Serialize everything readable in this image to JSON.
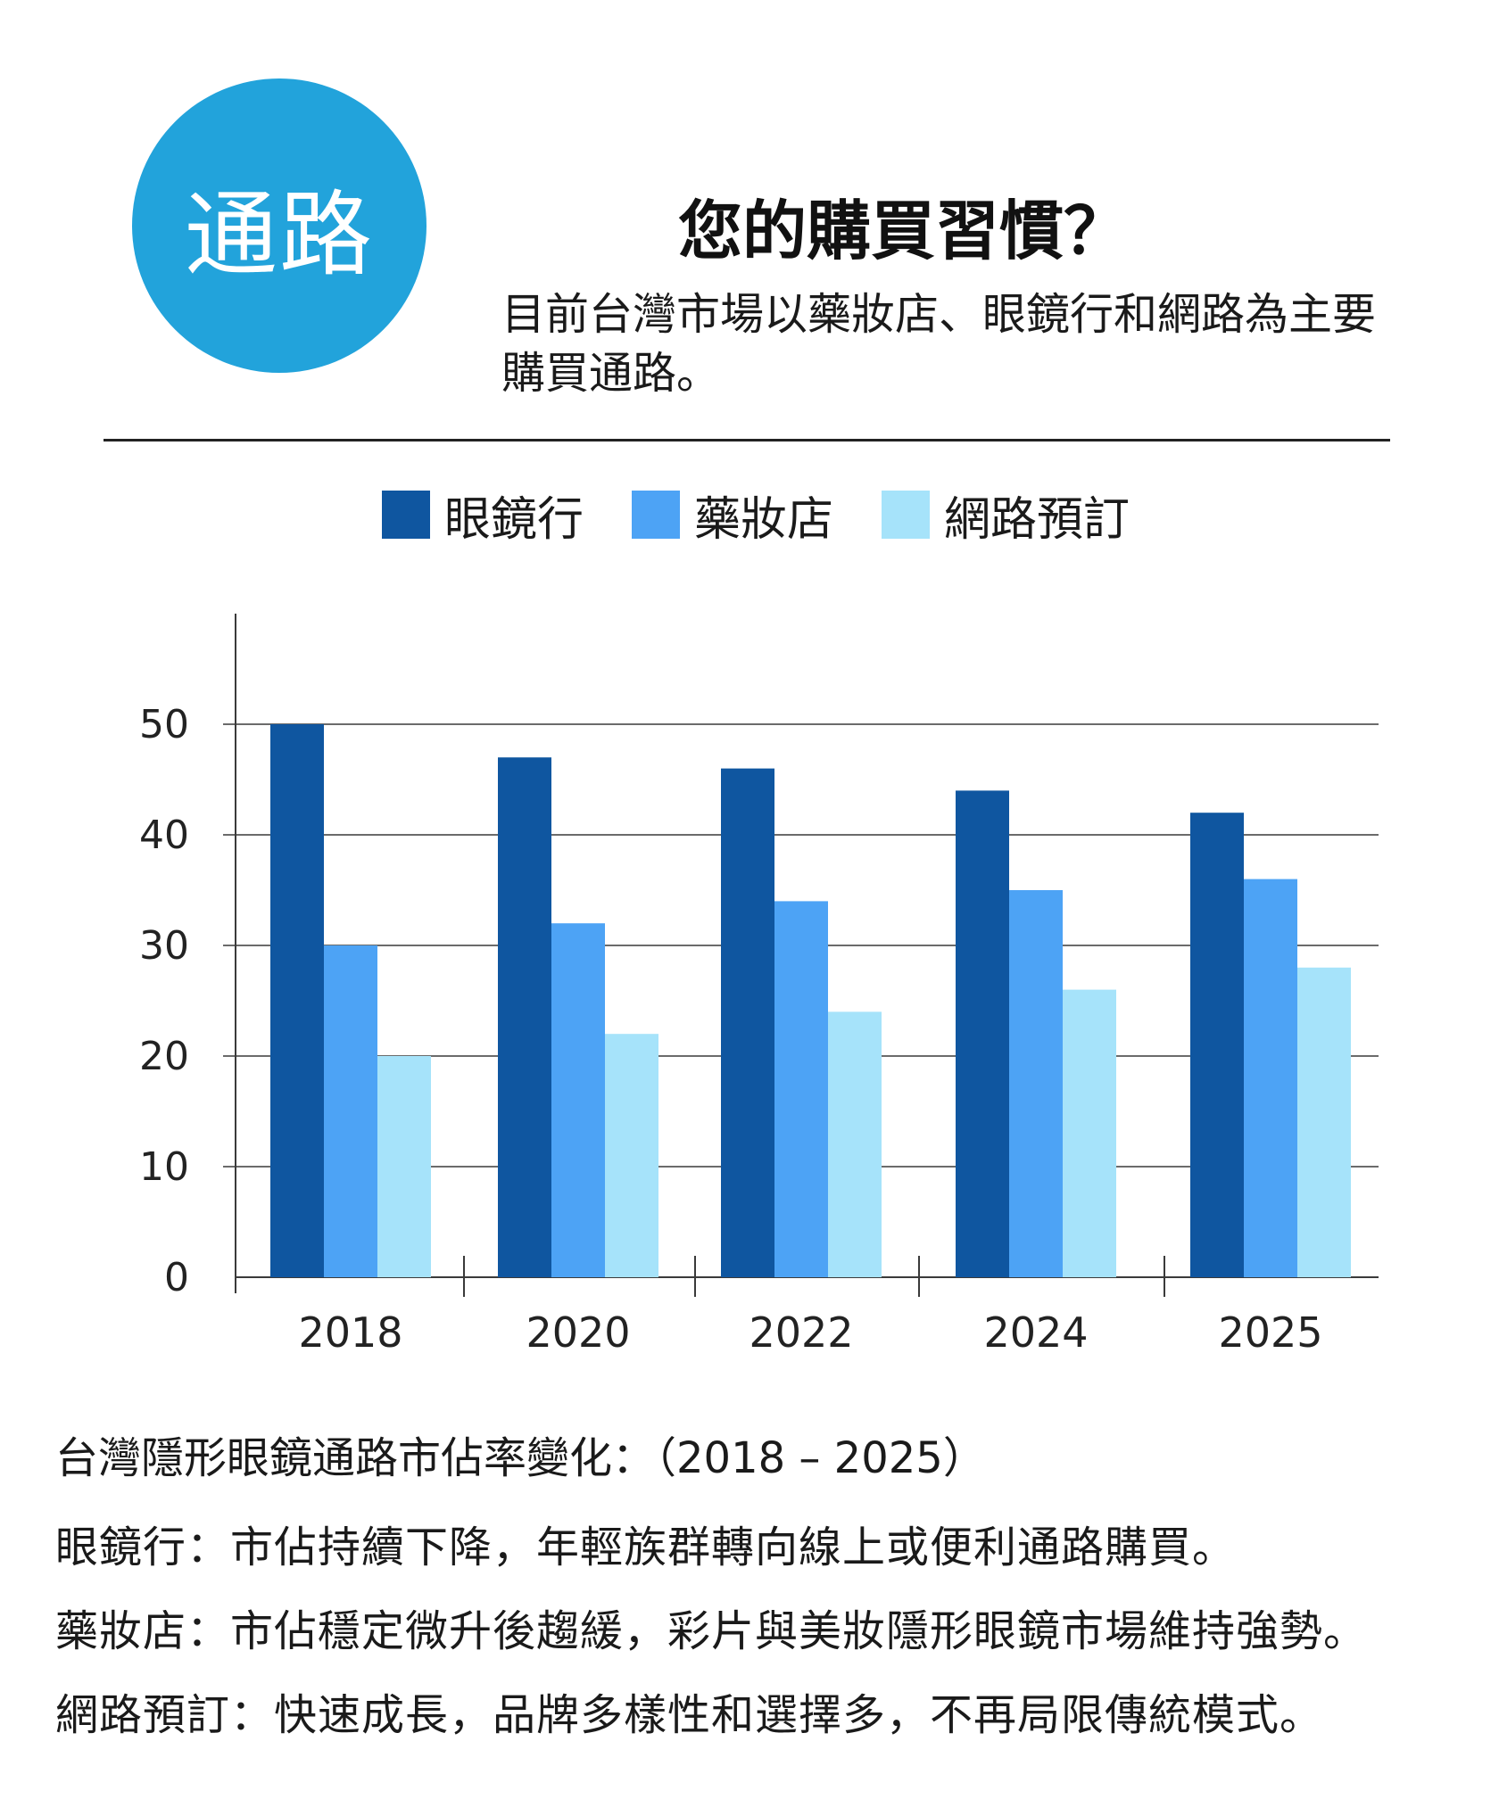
{
  "badge": {
    "label": "通路",
    "color": "#22A3DB"
  },
  "header": {
    "title": "您的購買習慣？",
    "subtitle": "目前台灣市場以藥妝店、眼鏡行和網路為主要購買通路。"
  },
  "colors": {
    "optical": "#0F56A0",
    "drugstore": "#4DA3F5",
    "online": "#A6E3FA"
  },
  "legend": [
    {
      "label": "眼鏡行",
      "color": "#0F56A0"
    },
    {
      "label": "藥妝店",
      "color": "#4DA3F5"
    },
    {
      "label": "網路預訂",
      "color": "#A6E3FA"
    }
  ],
  "chart_data": {
    "type": "bar",
    "categories": [
      "2018",
      "2020",
      "2022",
      "2024",
      "2025"
    ],
    "series": [
      {
        "name": "眼鏡行",
        "values": [
          50,
          47,
          46,
          44,
          42
        ]
      },
      {
        "name": "藥妝店",
        "values": [
          30,
          32,
          34,
          35,
          36
        ]
      },
      {
        "name": "網路預訂",
        "values": [
          20,
          22,
          24,
          26,
          28
        ]
      }
    ],
    "yticks": [
      0,
      10,
      20,
      30,
      40,
      50
    ],
    "ylim": [
      0,
      60
    ],
    "grid": true,
    "legend_position": "top"
  },
  "notes": {
    "heading": "台灣隱形眼鏡通路市佔率變化：（2018 – 2025）",
    "lines": [
      "眼鏡行：市佔持續下降，年輕族群轉向線上或便利通路購買。",
      "藥妝店：市佔穩定微升後趨緩，彩片與美妝隱形眼鏡市場維持強勢。",
      "網路預訂：快速成長，品牌多樣性和選擇多，不再局限傳統模式。"
    ]
  }
}
